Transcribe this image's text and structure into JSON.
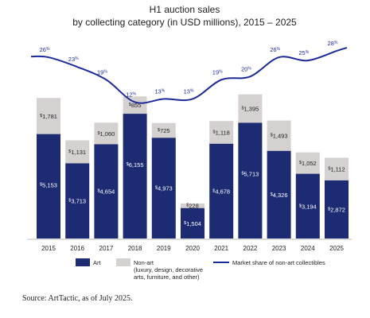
{
  "chart_data": {
    "type": "bar",
    "title": "H1 auction sales",
    "subtitle": "by collecting category (in USD millions), 2015 – 2025",
    "categories": [
      "2015",
      "2016",
      "2017",
      "2018",
      "2019",
      "2020",
      "2021",
      "2022",
      "2023",
      "2024",
      "2025"
    ],
    "series": [
      {
        "name": "Art",
        "color": "#1c2b72",
        "values": [
          5153,
          3713,
          4654,
          6155,
          4973,
          1504,
          4678,
          5713,
          4326,
          3194,
          2872
        ],
        "labels": [
          "5,153",
          "3,713",
          "4,654",
          "6,155",
          "4,973",
          "1,504",
          "4,678",
          "5,713",
          "4,326",
          "3,194",
          "2,872"
        ]
      },
      {
        "name": "Non-art\n(luxury, design, decorative\narts, furniture, and other)",
        "color": "#d6d1d1",
        "values": [
          1781,
          1131,
          1060,
          855,
          725,
          228,
          1118,
          1395,
          1493,
          1052,
          1112
        ],
        "labels": [
          "1,781",
          "1,131",
          "1,060",
          "855",
          "725",
          "228",
          "1,118",
          "1,395",
          "1,493",
          "1,052",
          "1,112"
        ]
      }
    ],
    "line": {
      "name": "Market share of non-art collectibles",
      "color": "#1c2b9c",
      "values": [
        26,
        23,
        19,
        12,
        13,
        13,
        19,
        20,
        26,
        25,
        28
      ],
      "labels": [
        "26%",
        "23%",
        "19%",
        "12%",
        "13%",
        "13%",
        "19%",
        "20%",
        "26%",
        "25%",
        "28%"
      ]
    },
    "legend_position": "bottom",
    "grid": false
  },
  "source": "Source: ArtTactic, as of July 2025."
}
